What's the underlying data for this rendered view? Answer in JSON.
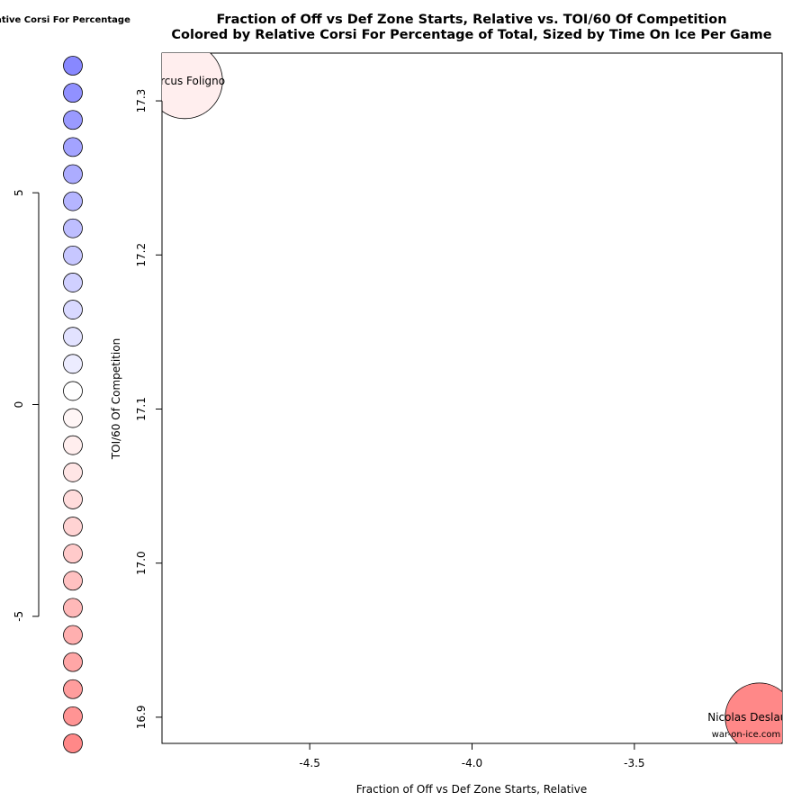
{
  "chart_data": {
    "type": "scatter",
    "title": "Fraction of Off vs Def Zone Starts, Relative vs. TOI/60 Of Competition",
    "subtitle": "Colored by Relative Corsi For Percentage of Total, Sized by Time On Ice Per Game",
    "xlabel": "Fraction of Off vs Def Zone Starts, Relative",
    "ylabel": "TOI/60 Of Competition",
    "xlim": [
      -4.955,
      -3.045
    ],
    "ylim": [
      16.883,
      17.331
    ],
    "x_ticks": [
      "-4.5",
      "-4.0",
      "-3.5"
    ],
    "x_tick_values": [
      -4.5,
      -4.0,
      -3.5
    ],
    "y_ticks": [
      "16.9",
      "17.0",
      "17.1",
      "17.2",
      "17.3"
    ],
    "y_tick_values": [
      16.9,
      17.0,
      17.1,
      17.2,
      17.3
    ],
    "points": [
      {
        "label": "Marcus Foligno",
        "x": -4.885,
        "y": 17.313,
        "size": 0.85,
        "color": "#FFEEEE"
      },
      {
        "label": "Nicolas Deslauriers",
        "x": -3.115,
        "y": 16.9,
        "size": 0.75,
        "color": "#FF8888"
      }
    ],
    "credit": "war-on-ice.com",
    "legend": {
      "title": "Relative Corsi For Percentage",
      "axis_ticks": [
        "5",
        "0",
        "-5"
      ],
      "axis_tick_values": [
        5,
        0,
        -5
      ],
      "range": [
        -8,
        8
      ],
      "swatches": [
        "#8888FF",
        "#9191FF",
        "#9A9AFF",
        "#A3A3FF",
        "#ACACFF",
        "#B5B5FF",
        "#BEBEFF",
        "#C7C7FF",
        "#D0D0FF",
        "#D9D9FF",
        "#E2E2FF",
        "#ECECFF",
        "#FFFFFF",
        "#FFF6F6",
        "#FFEEEE",
        "#FFE5E5",
        "#FFDCDC",
        "#FFD3D3",
        "#FFCACA",
        "#FFC1C1",
        "#FFB8B8",
        "#FFAFAF",
        "#FFA6A6",
        "#FF9D9D",
        "#FF9494",
        "#FF8888"
      ]
    }
  }
}
